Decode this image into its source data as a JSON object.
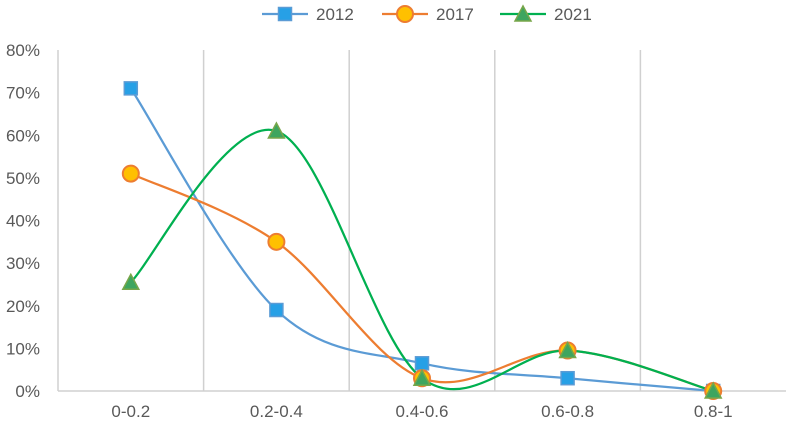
{
  "chart_data": {
    "type": "line",
    "categories": [
      "0-0.2",
      "0.2-0.4",
      "0.4-0.6",
      "0.6-0.8",
      "0.8-1"
    ],
    "series": [
      {
        "name": "2012",
        "values": [
          71,
          19,
          6.5,
          3,
          0
        ],
        "color": "#5b9bd5",
        "marker": "square",
        "marker_fill": "#27a0e6",
        "marker_stroke": "#5b9bd5"
      },
      {
        "name": "2017",
        "values": [
          51,
          35,
          3,
          9.5,
          0
        ],
        "color": "#ed7d31",
        "marker": "circle",
        "marker_fill": "#ffc000",
        "marker_stroke": "#ed7d31"
      },
      {
        "name": "2021",
        "values": [
          25.5,
          61,
          3,
          9.5,
          0
        ],
        "color": "#00b050",
        "marker": "triangle",
        "marker_fill": "#3ea55f",
        "marker_stroke": "#78a64a"
      }
    ],
    "ylim": [
      0,
      80
    ],
    "yticks": [
      0,
      10,
      20,
      30,
      40,
      50,
      60,
      70,
      80
    ],
    "ytick_suffix": "%",
    "grid": "vertical",
    "legend": "top-center",
    "smooth": true,
    "title": "",
    "xlabel": "",
    "ylabel": ""
  }
}
